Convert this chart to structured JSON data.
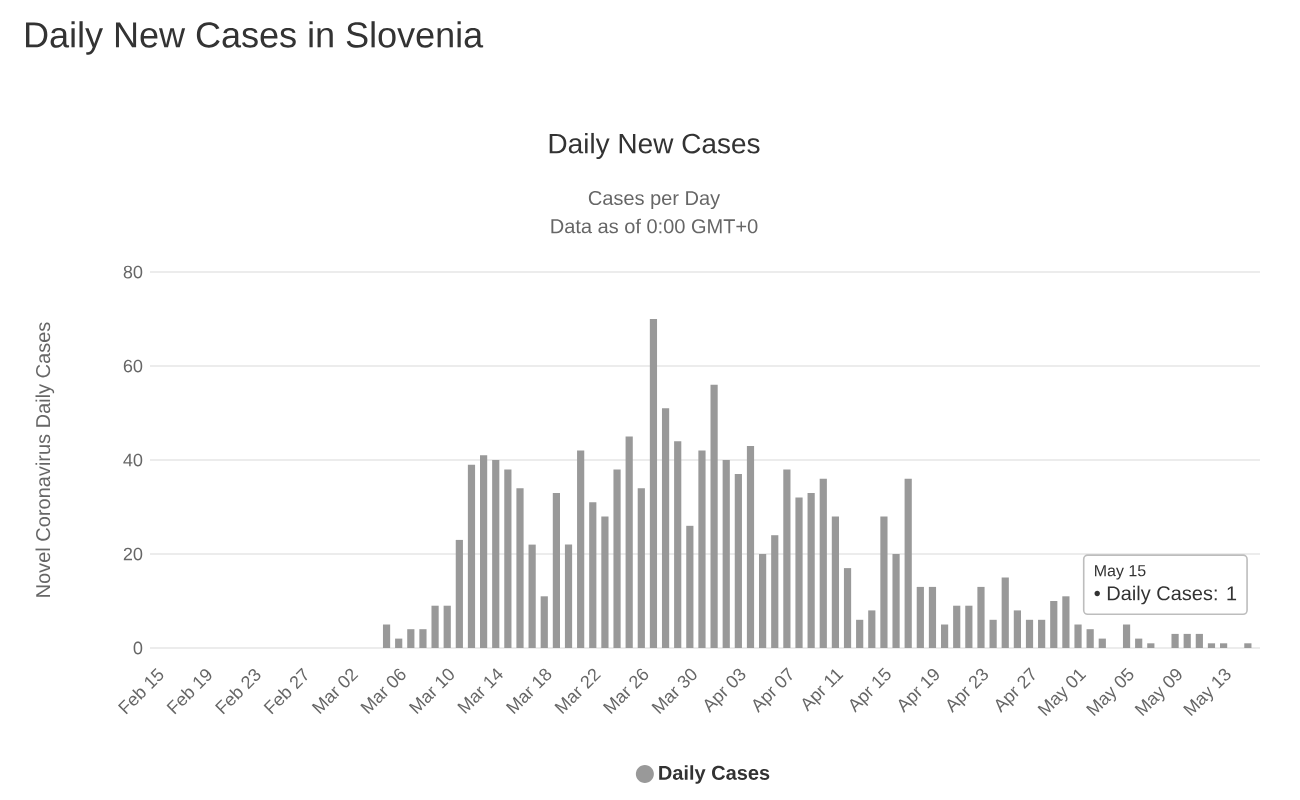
{
  "chart_data": {
    "type": "bar",
    "title": "Daily New Cases in Slovenia",
    "subtitle": "Daily New Cases",
    "ylabel": "Novel Coronavirus Daily Cases",
    "annotations": [
      "Cases per Day",
      "Data as of 0:00 GMT+0",
      "May 15",
      "• Daily Cases: 1"
    ],
    "categories": [
      "Feb 15",
      null,
      null,
      null,
      "Feb 19",
      null,
      null,
      null,
      "Feb 23",
      null,
      null,
      null,
      "Feb 27",
      null,
      null,
      null,
      "Mar 02",
      null,
      null,
      null,
      "Mar 06",
      null,
      null,
      null,
      "Mar 10",
      null,
      null,
      null,
      "Mar 14",
      null,
      null,
      null,
      "Mar 18",
      null,
      null,
      null,
      "Mar 22",
      null,
      null,
      null,
      "Mar 26",
      null,
      null,
      null,
      "Mar 30",
      null,
      null,
      null,
      "Apr 03",
      null,
      null,
      null,
      "Apr 07",
      null,
      null,
      null,
      "Apr 11",
      null,
      null,
      null,
      "Apr 15",
      null,
      null,
      null,
      "Apr 19",
      null,
      null,
      null,
      "Apr 23",
      null,
      null,
      null,
      "Apr 27",
      null,
      null,
      null,
      "May 01",
      null,
      null,
      null,
      "May 05",
      null,
      null,
      null,
      "May 09",
      null,
      null,
      null,
      "May 13",
      null,
      null
    ],
    "series": [
      {
        "name": "Daily Cases",
        "color": "#999999",
        "values": [
          0,
          0,
          0,
          0,
          0,
          0,
          0,
          0,
          0,
          0,
          0,
          0,
          0,
          0,
          0,
          0,
          0,
          0,
          0,
          5,
          2,
          4,
          4,
          9,
          9,
          23,
          39,
          41,
          40,
          38,
          34,
          22,
          11,
          33,
          22,
          42,
          31,
          28,
          38,
          45,
          34,
          70,
          51,
          44,
          26,
          42,
          56,
          40,
          37,
          43,
          20,
          24,
          38,
          32,
          33,
          36,
          28,
          17,
          6,
          8,
          28,
          20,
          36,
          13,
          13,
          5,
          9,
          9,
          13,
          6,
          15,
          8,
          6,
          6,
          10,
          11,
          5,
          4,
          2,
          0,
          5,
          2,
          1,
          0,
          3,
          3,
          3,
          1,
          1,
          0,
          1
        ]
      }
    ],
    "ylim": [
      0,
      80
    ],
    "yticks": [
      0,
      20,
      40,
      60,
      80
    ],
    "grid": "y",
    "legend": "bottom"
  }
}
